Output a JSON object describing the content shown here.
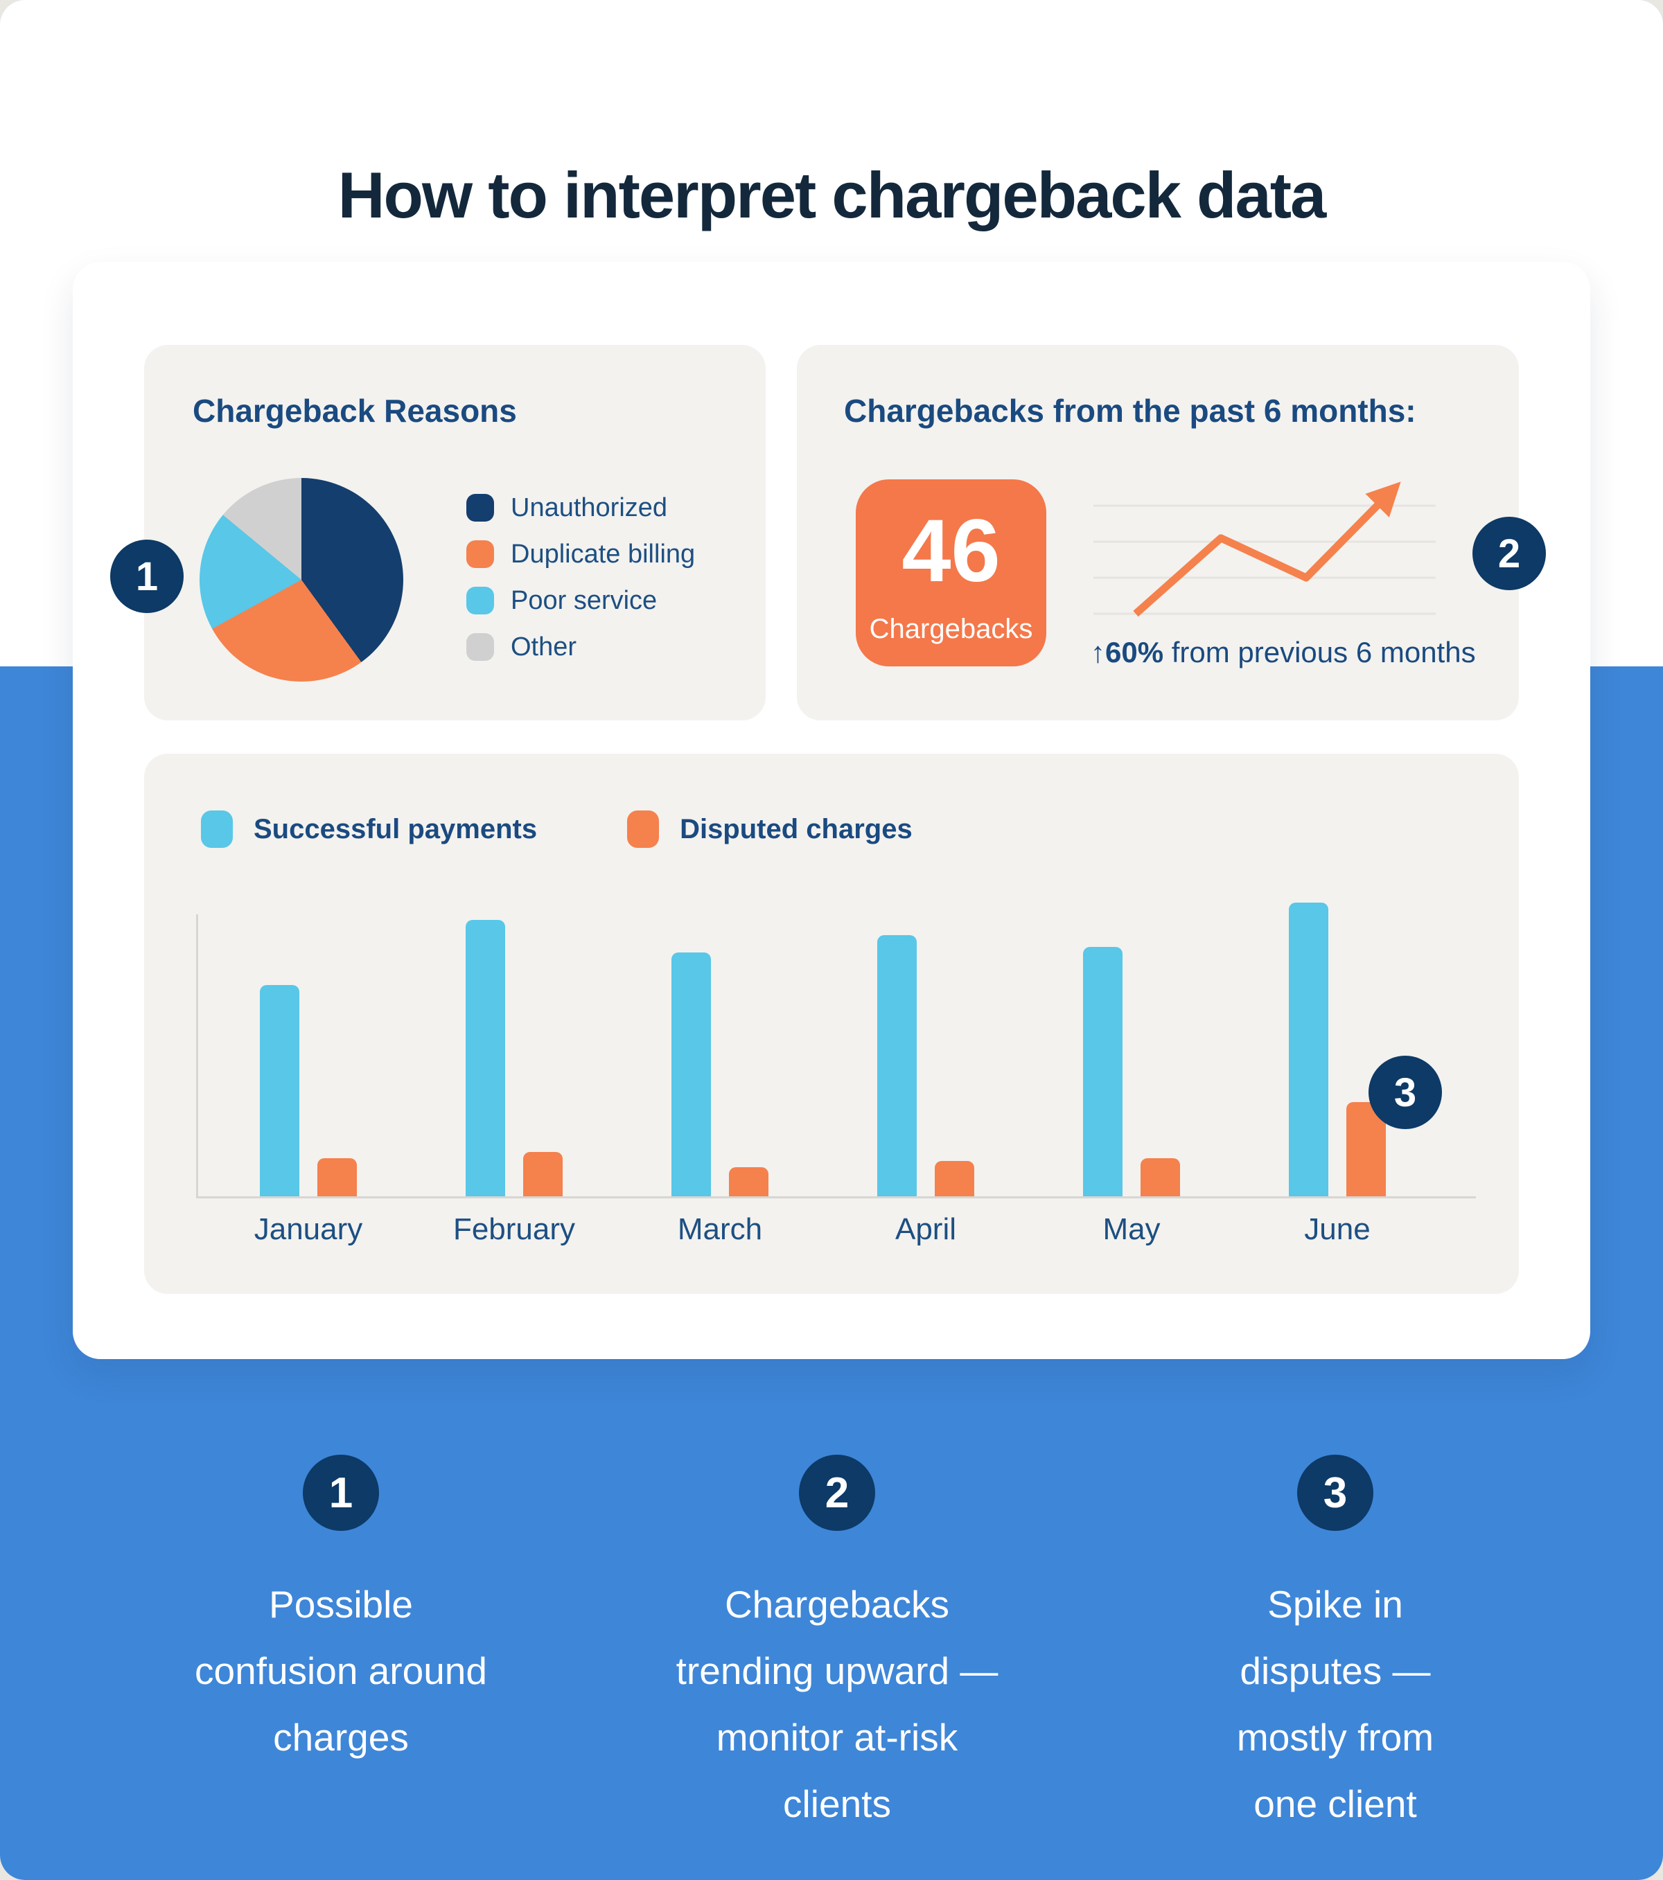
{
  "page": {
    "title": "How to interpret chargeback data"
  },
  "colors": {
    "page_bg": "#ffffff",
    "backdrop": "#e8e7e1",
    "blue_band": "#3e86d8",
    "panel_bg": "#f3f2ef",
    "title_navy": "#14283c",
    "heading_navy": "#1a4a80",
    "label_navy": "#1d4f82",
    "badge_navy": "#0d3a66",
    "orange": "#f5814d",
    "stat_box_orange": "#f4784a",
    "light_blue": "#58c7e8",
    "pie_navy": "#143e6d",
    "gray_slice": "#d0d0d0",
    "gridline": "#e6e4e0",
    "axis": "#d8d6d2",
    "white": "#ffffff"
  },
  "badges": {
    "one": "1",
    "two": "2",
    "three": "3"
  },
  "pie_panel": {
    "title": "Chargeback Reasons"
  },
  "trend_panel": {
    "title": "Chargebacks from the past 6 months:",
    "stat_value": "46",
    "stat_label": "Chargebacks",
    "caption_arrow": "↑",
    "caption_bold": "60%",
    "caption_rest": " from previous 6 months"
  },
  "callouts": [
    {
      "number": "1",
      "lines": [
        "Possible",
        "confusion around",
        "charges"
      ]
    },
    {
      "number": "2",
      "lines": [
        "Chargebacks",
        "trending upward —",
        "monitor at-risk",
        "clients"
      ]
    },
    {
      "number": "3",
      "lines": [
        "Spike in",
        "disputes —",
        "mostly from",
        "one client"
      ]
    }
  ],
  "chart_data": [
    {
      "type": "pie",
      "title": "Chargeback Reasons",
      "labels": [
        "Unauthorized",
        "Duplicate billing",
        "Poor service",
        "Other"
      ],
      "values": [
        40,
        27,
        19,
        14
      ],
      "units": "percent, estimated from slice angles",
      "colors": [
        "#143e6d",
        "#f5814d",
        "#58c7e8",
        "#d0d0d0"
      ],
      "legend_position": "right",
      "start_angle": "12 o'clock, clockwise"
    },
    {
      "type": "line",
      "title": "Chargebacks from the past 6 months:",
      "headline_value": 46,
      "headline_label": "Chargebacks",
      "x": [
        1,
        2,
        3,
        4
      ],
      "y": [
        0,
        2.1,
        1.0,
        3.4
      ],
      "units": "gridline units (4 horizontal gridlines, unlabeled)",
      "annotation": "↑60% from previous 6 months",
      "grid": true,
      "line_color": "#f5814d",
      "arrow_end": true
    },
    {
      "type": "bar",
      "categories": [
        "January",
        "February",
        "March",
        "April",
        "May",
        "June"
      ],
      "series": [
        {
          "name": "Successful payments",
          "color": "#58c7e8",
          "values": [
            72,
            94,
            83,
            89,
            85,
            100
          ]
        },
        {
          "name": "Disputed charges",
          "color": "#f5814d",
          "values": [
            13,
            15,
            10,
            12,
            13,
            32
          ]
        }
      ],
      "units": "relative scale, estimated from bar heights (max blue bar = 100)",
      "legend_position": "top-left",
      "grid": false,
      "annotation": "Badge 3 marks the June spike in disputed charges"
    }
  ]
}
